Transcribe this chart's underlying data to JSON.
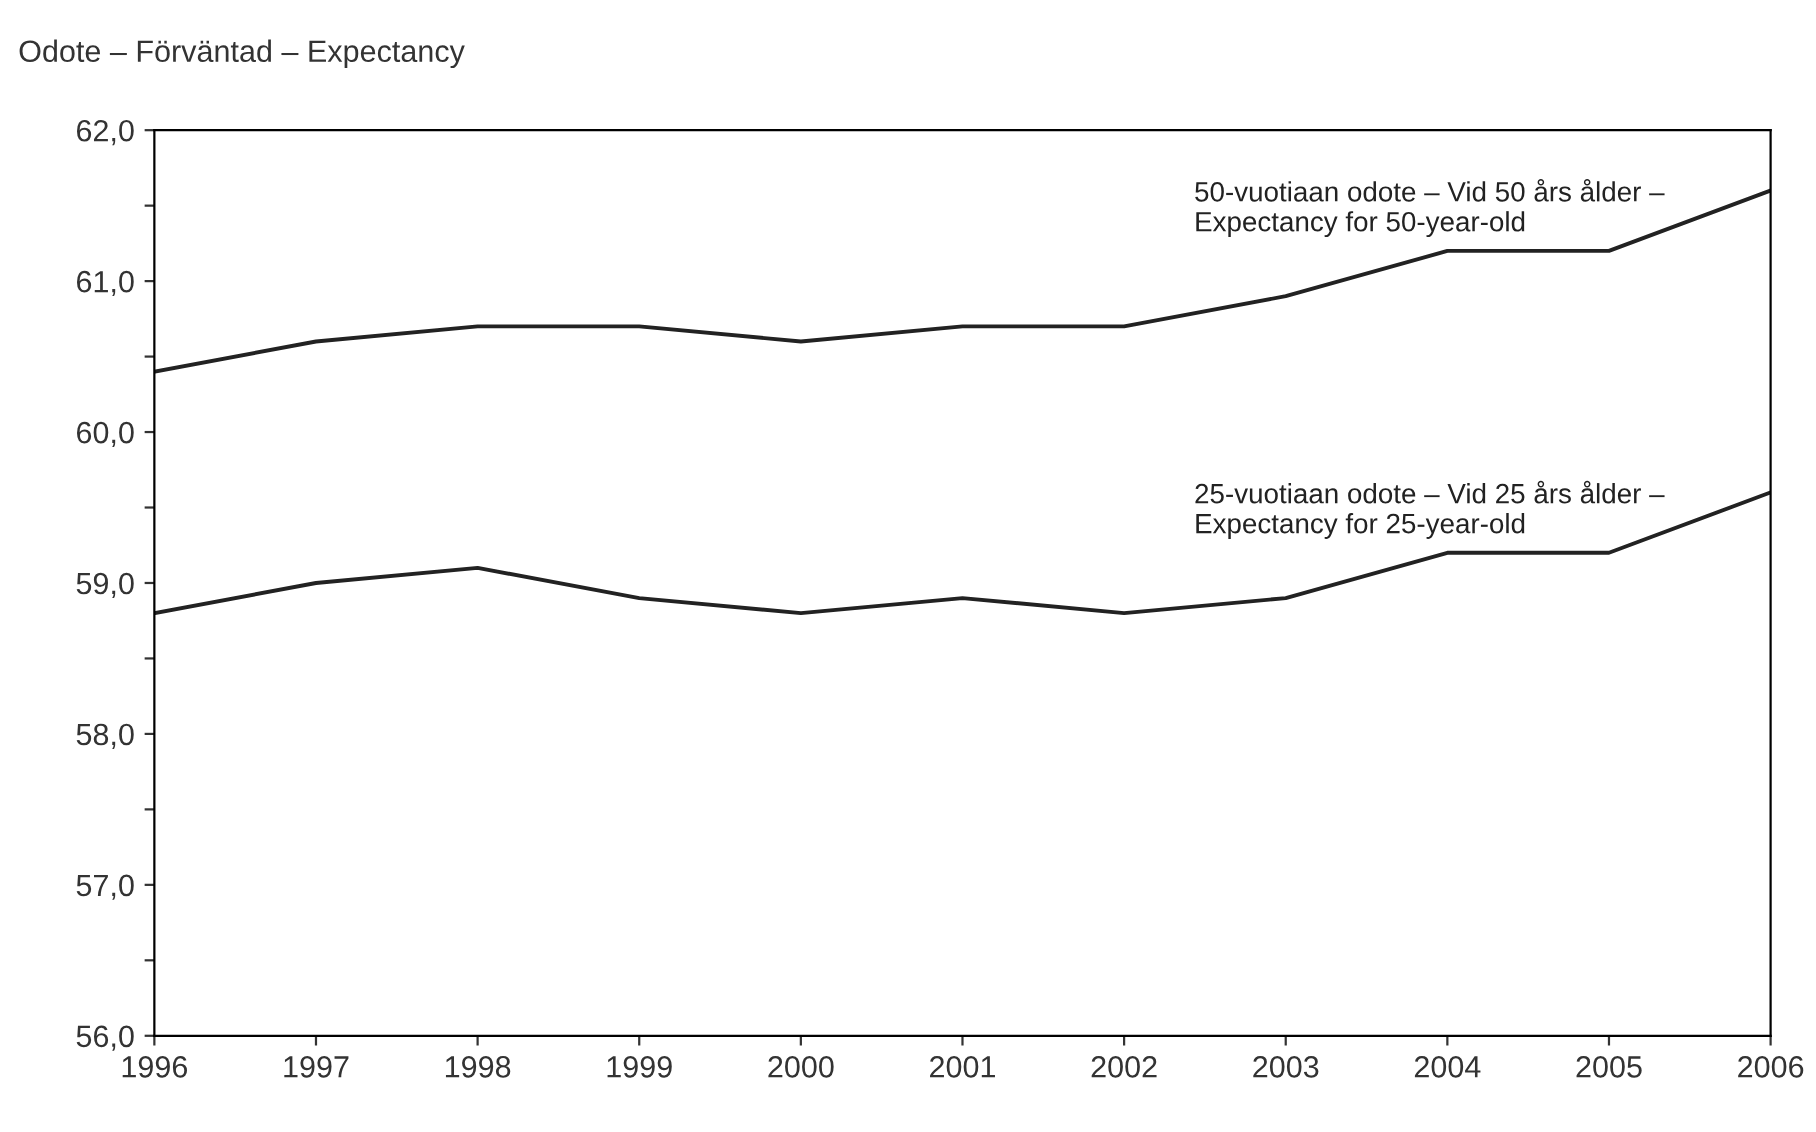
{
  "chart_data": {
    "type": "line",
    "title": "Odote – Förväntad – Expectancy",
    "x": [
      1996,
      1997,
      1998,
      1999,
      2000,
      2001,
      2002,
      2003,
      2004,
      2005,
      2006
    ],
    "series": [
      {
        "name": "50-vuotiaan odote – Vid 50 års ålder –\nExpectancy for 50-year-old",
        "color": "#222222",
        "values": [
          60.4,
          60.6,
          60.7,
          60.7,
          60.6,
          60.7,
          60.7,
          60.9,
          61.2,
          61.2,
          61.6
        ]
      },
      {
        "name": "25-vuotiaan odote – Vid 25 års ålder –\nExpectancy for 25-year-old",
        "color": "#222222",
        "values": [
          58.8,
          59.0,
          59.1,
          58.9,
          58.8,
          58.9,
          58.8,
          58.9,
          59.2,
          59.2,
          59.6
        ]
      }
    ],
    "xlim": [
      1996,
      2006
    ],
    "xticks": [
      1996,
      1997,
      1998,
      1999,
      2000,
      2001,
      2002,
      2003,
      2004,
      2005,
      2006
    ],
    "ylim": [
      56,
      62
    ],
    "yticks": [
      {
        "value": 56,
        "label": "56,0"
      },
      {
        "value": 56.5,
        "label": null
      },
      {
        "value": 57,
        "label": "57,0"
      },
      {
        "value": 57.5,
        "label": null
      },
      {
        "value": 58,
        "label": "58,0"
      },
      {
        "value": 58.5,
        "label": null
      },
      {
        "value": 59,
        "label": "59,0"
      },
      {
        "value": 59.5,
        "label": null
      },
      {
        "value": 60,
        "label": "60,0"
      },
      {
        "value": 60.5,
        "label": null
      },
      {
        "value": 61,
        "label": "61,0"
      },
      {
        "value": 61.5,
        "label": null
      },
      {
        "value": 62,
        "label": "62,0"
      }
    ],
    "grid": false,
    "legend": false,
    "marker": "none",
    "line_style": "solid"
  }
}
